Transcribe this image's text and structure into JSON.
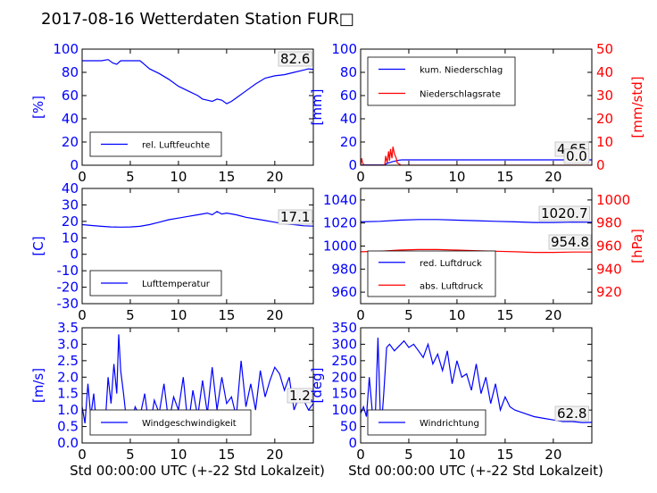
{
  "title": "2017-08-16 Wetterdaten Station FUR□",
  "xlabel": "Std 00:00:00 UTC (+-22 Std Lokalzeit)",
  "colors": {
    "primary": "#0000ff",
    "secondary": "#ff0000",
    "secondary_light": "#8080ff",
    "axis": "#000000"
  },
  "chart_data": [
    {
      "type": "line",
      "ylabel": "[%]",
      "xlim": [
        0,
        24
      ],
      "ylim": [
        0,
        100
      ],
      "xticks": [
        0,
        5,
        10,
        15,
        20
      ],
      "yticks": [
        0,
        20,
        40,
        60,
        80,
        100
      ],
      "legend": [
        "rel. Luftfeuchte"
      ],
      "legend_loc": "lower-left",
      "annotation": "82.6",
      "series": [
        {
          "name": "rel. Luftfeuchte",
          "color": "#0000ff",
          "x": [
            0,
            1,
            2,
            2.7,
            3.2,
            3.6,
            4,
            5,
            6,
            6.3,
            7,
            8,
            9,
            10,
            11,
            12,
            12.5,
            13,
            13.5,
            14,
            14.5,
            15,
            15.5,
            16,
            17,
            18,
            19,
            20,
            21,
            22,
            23,
            23.5,
            24
          ],
          "y": [
            90,
            90,
            90,
            91,
            88,
            87,
            90,
            90,
            90,
            88,
            83,
            79,
            74,
            68,
            64,
            60,
            57,
            56,
            55,
            57,
            56,
            53,
            55,
            58,
            64,
            70,
            75,
            77,
            78,
            80,
            82,
            83,
            82.6
          ]
        }
      ]
    },
    {
      "type": "line",
      "ylabel": "[mm]",
      "ylabel2": "[mm/std]",
      "xlim": [
        0,
        24
      ],
      "ylim": [
        0,
        100
      ],
      "ylim2": [
        0,
        50
      ],
      "xticks": [
        0,
        5,
        10,
        15,
        20
      ],
      "yticks": [
        0,
        20,
        40,
        60,
        80,
        100
      ],
      "yticks2": [
        0,
        10,
        20,
        30,
        40,
        50
      ],
      "legend": [
        "kum. Niederschlag",
        "Niederschlagsrate"
      ],
      "legend_loc": "upper-left",
      "annotations": [
        "4.65",
        "0.0"
      ],
      "series": [
        {
          "name": "kum. Niederschlag",
          "axis": "left",
          "color": "#0000ff",
          "x": [
            0,
            0.2,
            0.3,
            2.5,
            2.7,
            3.0,
            3.3,
            3.6,
            4.0,
            4.3,
            5,
            10,
            15,
            20,
            24
          ],
          "y": [
            0,
            0.2,
            0.2,
            0.3,
            1.5,
            2.2,
            3,
            3.6,
            4.4,
            4.65,
            4.65,
            4.65,
            4.65,
            4.65,
            4.65
          ]
        },
        {
          "name": "Niederschlagsrate",
          "axis": "right",
          "color": "#ff0000",
          "x": [
            0,
            0.1,
            0.2,
            0.35,
            0.5,
            2.5,
            2.6,
            2.75,
            2.9,
            3.0,
            3.1,
            3.25,
            3.35,
            3.5,
            3.7,
            3.8,
            4.0,
            4.2,
            5,
            10,
            15,
            20,
            24
          ],
          "y": [
            0,
            3,
            1,
            0,
            0,
            0,
            4,
            1,
            6,
            2,
            7,
            3,
            8,
            5,
            3,
            1,
            0.5,
            0,
            0,
            0,
            0,
            0,
            0
          ]
        }
      ]
    },
    {
      "type": "line",
      "ylabel": "[C]",
      "xlim": [
        0,
        24
      ],
      "ylim": [
        -30,
        40
      ],
      "xticks": [
        0,
        5,
        10,
        15,
        20
      ],
      "yticks": [
        -30,
        -20,
        -10,
        0,
        10,
        20,
        30,
        40
      ],
      "legend": [
        "Lufttemperatur"
      ],
      "legend_loc": "lower-left",
      "annotation": "17.1",
      "series": [
        {
          "name": "Lufttemperatur",
          "color": "#0000ff",
          "x": [
            0,
            1,
            2,
            3,
            4,
            5,
            6,
            7,
            8,
            9,
            10,
            11,
            12,
            13,
            13.5,
            14,
            14.5,
            15,
            16,
            17,
            18,
            19,
            20,
            21,
            22,
            23,
            24
          ],
          "y": [
            18,
            17.5,
            17,
            16.6,
            16.5,
            16.6,
            17,
            18,
            19.5,
            21,
            22,
            23,
            24,
            25,
            24,
            26,
            24.5,
            25,
            24,
            22.5,
            21.5,
            20.5,
            19.5,
            18.5,
            18,
            17.3,
            17.1
          ]
        }
      ]
    },
    {
      "type": "line",
      "ylabel2": "[hPa]",
      "xlim": [
        0,
        24
      ],
      "ylim": [
        950,
        1050
      ],
      "ylim2": [
        910,
        1010
      ],
      "xticks": [
        0,
        5,
        10,
        15,
        20
      ],
      "yticks": [
        960,
        980,
        1000,
        1020,
        1040
      ],
      "yticks2": [
        920,
        940,
        960,
        980,
        1000
      ],
      "legend": [
        "red. Luftdruck",
        "abs. Luftdruck"
      ],
      "legend_loc": "lower-left",
      "annotations": [
        "1020.7",
        "954.8"
      ],
      "series": [
        {
          "name": "red. Luftdruck",
          "axis": "left",
          "color": "#0000ff",
          "x": [
            0,
            2,
            4,
            6,
            8,
            10,
            12,
            14,
            16,
            18,
            20,
            22,
            24
          ],
          "y": [
            1021,
            1021.5,
            1022.5,
            1023,
            1023,
            1022.5,
            1022,
            1021.5,
            1021,
            1020.5,
            1020.5,
            1020.8,
            1020.7
          ]
        },
        {
          "name": "abs. Luftdruck",
          "axis": "right",
          "color": "#ff0000",
          "x": [
            0,
            2,
            4,
            6,
            8,
            10,
            12,
            14,
            16,
            18,
            20,
            22,
            24
          ],
          "y": [
            955,
            955.5,
            956.5,
            957,
            957,
            956.5,
            956,
            955.5,
            955,
            954.5,
            954.5,
            954.8,
            954.8
          ]
        }
      ]
    },
    {
      "type": "line",
      "ylabel": "[m/s]",
      "xlim": [
        0,
        24
      ],
      "ylim": [
        0,
        3.5
      ],
      "xticks": [
        0,
        5,
        10,
        15,
        20
      ],
      "yticks": [
        0.0,
        0.5,
        1.0,
        1.5,
        2.0,
        2.5,
        3.0,
        3.5
      ],
      "legend": [
        "Windgeschwindigkeit"
      ],
      "legend_loc": "lower-center",
      "annotation": "1.2",
      "series": [
        {
          "name": "Windgeschwindigkeit",
          "color": "#0000ff",
          "x": [
            0,
            0.3,
            0.6,
            0.9,
            1.2,
            1.5,
            1.8,
            2.1,
            2.4,
            2.7,
            3.0,
            3.3,
            3.6,
            3.8,
            4.0,
            4.3,
            4.6,
            5.0,
            5.5,
            6.0,
            6.5,
            7.0,
            7.5,
            8.0,
            8.5,
            9.0,
            9.5,
            10.0,
            10.5,
            11.0,
            11.5,
            12.0,
            12.5,
            13.0,
            13.5,
            14.0,
            14.5,
            15.0,
            15.5,
            16.0,
            16.5,
            17.0,
            17.5,
            18.0,
            18.5,
            19.0,
            19.5,
            20.0,
            20.5,
            21.0,
            21.5,
            22.0,
            22.5,
            23.0,
            23.5,
            24.0
          ],
          "y": [
            1.1,
            0.6,
            1.8,
            0.8,
            1.5,
            0.5,
            1.0,
            0.3,
            0.6,
            2.0,
            1.2,
            2.4,
            1.5,
            3.3,
            2.2,
            1.5,
            0.7,
            0.5,
            1.1,
            0.8,
            1.5,
            0.4,
            1.3,
            0.9,
            1.8,
            0.6,
            1.4,
            1.0,
            2.0,
            0.5,
            1.6,
            0.8,
            1.9,
            0.9,
            2.3,
            1.0,
            2.0,
            1.2,
            1.4,
            0.8,
            2.5,
            1.1,
            1.8,
            1.0,
            2.2,
            1.4,
            1.9,
            2.3,
            2.1,
            1.6,
            2.0,
            1.0,
            1.4,
            1.3,
            1.0,
            1.2
          ]
        }
      ]
    },
    {
      "type": "line",
      "ylabel": "[deg]",
      "xlim": [
        0,
        24
      ],
      "ylim": [
        0,
        350
      ],
      "xticks": [
        0,
        5,
        10,
        15,
        20
      ],
      "yticks": [
        0,
        50,
        100,
        150,
        200,
        250,
        300,
        350
      ],
      "legend": [
        "Windrichtung"
      ],
      "legend_loc": "lower-left",
      "annotation": "62.8",
      "series": [
        {
          "name": "Windrichtung",
          "color": "#0000ff",
          "x": [
            0,
            0.3,
            0.6,
            0.9,
            1.2,
            1.5,
            1.8,
            2.1,
            2.4,
            2.7,
            3.0,
            3.5,
            4.0,
            4.5,
            5.0,
            5.5,
            6.0,
            6.5,
            7.0,
            7.5,
            8.0,
            8.5,
            9.0,
            9.5,
            10.0,
            10.5,
            11.0,
            11.5,
            12.0,
            12.5,
            13.0,
            13.5,
            14.0,
            14.5,
            15.0,
            15.5,
            16.0,
            17,
            18,
            19,
            20,
            21,
            22,
            23,
            24
          ],
          "y": [
            90,
            110,
            80,
            200,
            100,
            60,
            320,
            30,
            150,
            290,
            300,
            280,
            295,
            310,
            290,
            300,
            280,
            260,
            300,
            240,
            270,
            220,
            280,
            180,
            250,
            200,
            210,
            160,
            240,
            150,
            200,
            120,
            180,
            100,
            140,
            110,
            100,
            90,
            80,
            75,
            70,
            65,
            65,
            62,
            62.8
          ]
        }
      ]
    }
  ]
}
